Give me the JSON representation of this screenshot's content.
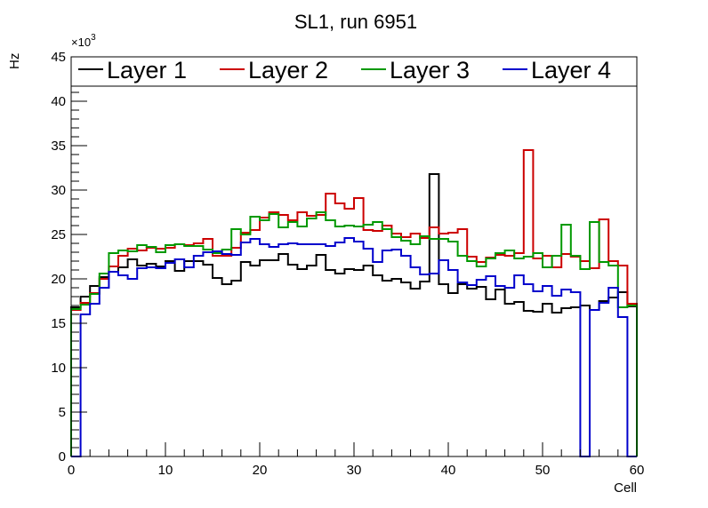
{
  "chart_data": {
    "type": "line",
    "title": "SL1, run 6951",
    "xlabel": "Cell",
    "ylabel": "Hz",
    "exponent_label": "×10",
    "exponent_power": "3",
    "xlim": [
      0,
      60
    ],
    "ylim": [
      0,
      45
    ],
    "x_ticks": [
      "0",
      "10",
      "20",
      "30",
      "40",
      "50",
      "60"
    ],
    "y_ticks": [
      "0",
      "5",
      "10",
      "15",
      "20",
      "25",
      "30",
      "35",
      "40",
      "45"
    ],
    "legend_position": "top",
    "grid": false,
    "series": [
      {
        "name": "Layer 1",
        "color": "#000000",
        "values": [
          16.8,
          18,
          19.2,
          20.2,
          20.8,
          21.3,
          22.2,
          21.5,
          21.7,
          21.4,
          22.0,
          20.9,
          22.0,
          22.0,
          21.6,
          20.1,
          19.4,
          19.8,
          21.9,
          21.5,
          22.1,
          22.1,
          22.8,
          21.6,
          21.1,
          21.5,
          22.7,
          21.0,
          20.6,
          21.1,
          21.0,
          21.5,
          20.4,
          19.8,
          20.0,
          19.6,
          18.9,
          19.7,
          31.8,
          19.4,
          18.4,
          19.4,
          18.9,
          19.1,
          17.7,
          18.8,
          17.2,
          17.4,
          16.4,
          16.3,
          17.2,
          16.2,
          16.7,
          16.8,
          17.0,
          16.5,
          17.5,
          17.9,
          18.5,
          16.9
        ]
      },
      {
        "name": "Layer 2",
        "color": "#cc0000",
        "values": [
          16.5,
          17.3,
          18.4,
          20.0,
          21.4,
          22.6,
          23.4,
          23.2,
          23.5,
          23.4,
          23.5,
          23.9,
          23.8,
          24.0,
          24.5,
          22.6,
          22.6,
          23.5,
          25.2,
          25.5,
          26.9,
          27.5,
          27.2,
          26.6,
          27.5,
          27.1,
          27.2,
          29.6,
          28.5,
          27.9,
          29.1,
          25.5,
          25.4,
          26.0,
          25.1,
          24.7,
          25.1,
          24.6,
          25.8,
          25.1,
          25.2,
          25.6,
          22.5,
          21.9,
          22.4,
          22.7,
          22.6,
          22.9,
          34.5,
          22.3,
          22.6,
          21.3,
          22.8,
          22.5,
          22.0,
          21.2,
          26.7,
          22.0,
          21.5,
          17.2
        ]
      },
      {
        "name": "Layer 3",
        "color": "#009900",
        "values": [
          16.6,
          17.1,
          18.3,
          20.6,
          22.9,
          23.2,
          23.1,
          23.8,
          23.6,
          23.0,
          23.8,
          23.9,
          23.7,
          23.7,
          23.3,
          22.9,
          23.3,
          25.6,
          25.0,
          27.0,
          26.6,
          27.3,
          25.8,
          26.4,
          25.9,
          26.8,
          27.5,
          26.6,
          25.9,
          26.0,
          25.9,
          26.1,
          26.4,
          25.6,
          24.7,
          24.3,
          23.9,
          24.8,
          24.5,
          24.5,
          24.2,
          22.6,
          22.0,
          21.4,
          22.3,
          22.9,
          23.2,
          22.3,
          22.5,
          22.9,
          21.3,
          22.6,
          26.1,
          22.6,
          21.1,
          26.4,
          21.9,
          21.5,
          16.8,
          17.0
        ]
      },
      {
        "name": "Layer 4",
        "color": "#0000cc",
        "values": [
          0,
          16.0,
          17.2,
          19.0,
          20.8,
          20.4,
          20.0,
          21.2,
          21.3,
          21.2,
          21.8,
          22.2,
          21.3,
          22.6,
          23.0,
          23.1,
          22.8,
          22.7,
          24.1,
          24.5,
          23.9,
          23.6,
          23.9,
          24.0,
          23.9,
          23.9,
          23.9,
          23.7,
          24.1,
          24.6,
          24.2,
          23.4,
          21.9,
          23.2,
          23.3,
          22.6,
          21.3,
          20.5,
          20.6,
          22.1,
          21.0,
          19.6,
          19.3,
          19.9,
          20.3,
          19.2,
          19.0,
          20.4,
          19.4,
          18.6,
          19.2,
          18.1,
          18.8,
          18.5,
          0,
          16.5,
          17.3,
          19.0,
          15.7,
          0
        ]
      }
    ]
  }
}
